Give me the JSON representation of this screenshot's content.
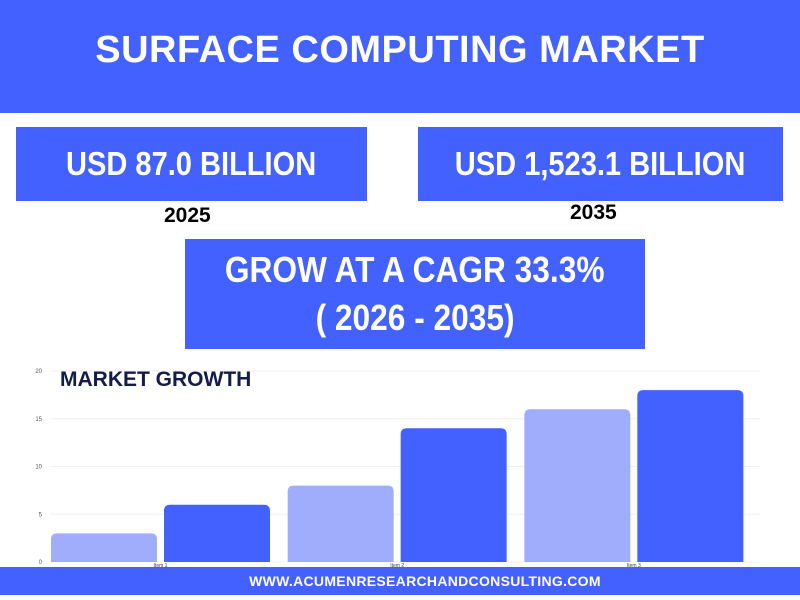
{
  "header": {
    "title": "SURFACE COMPUTING MARKET"
  },
  "stats": {
    "value_2025": "USD 87.0 BILLION",
    "year_2025": "2025",
    "value_2035": "USD 1,523.1 BILLION",
    "year_2035": "2035",
    "cagr_line1": "GROW AT A CAGR 33.3%",
    "cagr_line2": "( 2026 - 2035)"
  },
  "footer": {
    "url": "WWW.ACUMENRESEARCHANDCONSULTING.COM"
  },
  "chart_data": {
    "type": "bar",
    "title": "MARKET GROWTH",
    "categories": [
      "Item 1",
      "Item 2",
      "Item 3"
    ],
    "series": [
      {
        "values": [
          3,
          8,
          16
        ],
        "color": "#a0acfc"
      },
      {
        "values": [
          6,
          14,
          18
        ],
        "color": "#4361fe"
      }
    ],
    "ylim": [
      0,
      20
    ],
    "yticks": [
      0,
      5,
      10,
      15,
      20
    ],
    "grid": true,
    "colors": {
      "primary": "#4361fe",
      "light": "#a0acfc",
      "title": "#141c4a"
    }
  }
}
